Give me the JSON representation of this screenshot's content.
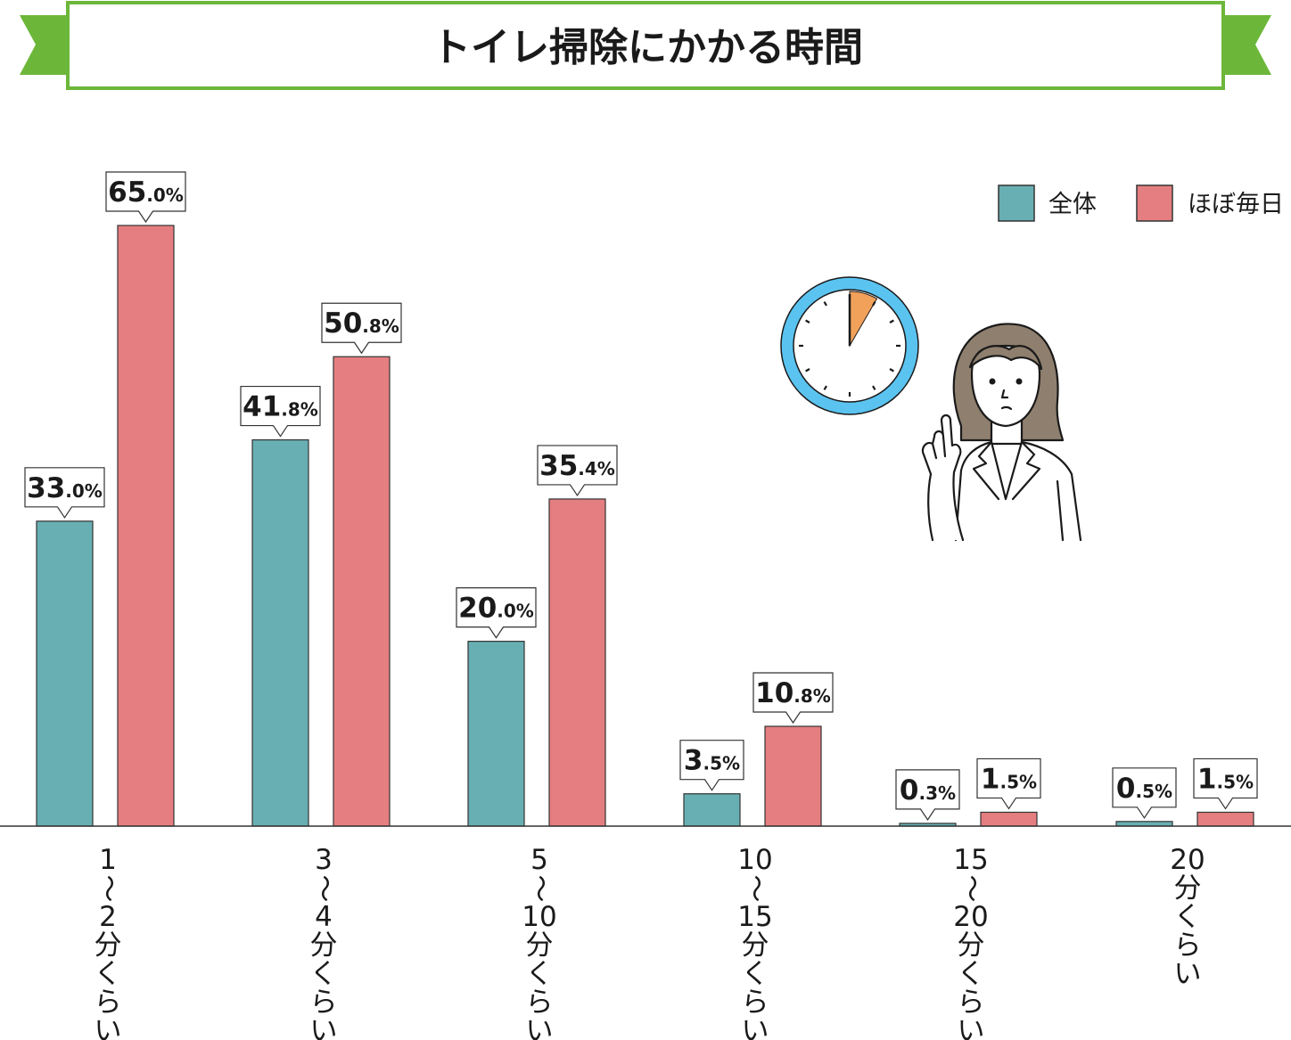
{
  "title": "トイレ掃除にかかる時間",
  "colors": {
    "banner_green": "#6cb73a",
    "series_all": "#68afb3",
    "series_daily": "#e57e80",
    "clock_ring": "#5bc3f0",
    "clock_wedge": "#f2a15a",
    "hair": "#8f7f6e"
  },
  "illustration": {
    "clock_icon": "clock-icon",
    "person_icon": "woman-pointing-up-icon"
  },
  "chart_data": {
    "type": "bar",
    "title": "トイレ掃除にかかる時間",
    "categories": [
      "1〜2分くらい",
      "3〜4分くらい",
      "5〜10分くらい",
      "10〜15分くらい",
      "15〜20分くらい",
      "20分くらい"
    ],
    "category_lines": [
      [
        "1",
        "〜",
        "2",
        "分",
        "く",
        "ら",
        "い"
      ],
      [
        "3",
        "〜",
        "4",
        "分",
        "く",
        "ら",
        "い"
      ],
      [
        "5",
        "〜",
        "10",
        "分",
        "く",
        "ら",
        "い"
      ],
      [
        "10",
        "〜",
        "15",
        "分",
        "く",
        "ら",
        "い"
      ],
      [
        "15",
        "〜",
        "20",
        "分",
        "く",
        "ら",
        "い"
      ],
      [
        "20",
        "分",
        "く",
        "ら",
        "い"
      ]
    ],
    "series": [
      {
        "name": "全体",
        "values": [
          33.0,
          41.8,
          20.0,
          3.5,
          0.3,
          0.5
        ],
        "labels": [
          "33.0%",
          "41.8%",
          "20.0%",
          "3.5%",
          "0.3%",
          "0.5%"
        ]
      },
      {
        "name": "ほぼ毎日",
        "values": [
          65.0,
          50.8,
          35.4,
          10.8,
          1.5,
          1.5
        ],
        "labels": [
          "65.0%",
          "50.8%",
          "35.4%",
          "10.8%",
          "1.5%",
          "1.5%"
        ]
      }
    ],
    "ylim": [
      0,
      70
    ],
    "grid": false,
    "legend": "top-right",
    "xlabel": "",
    "ylabel": ""
  }
}
